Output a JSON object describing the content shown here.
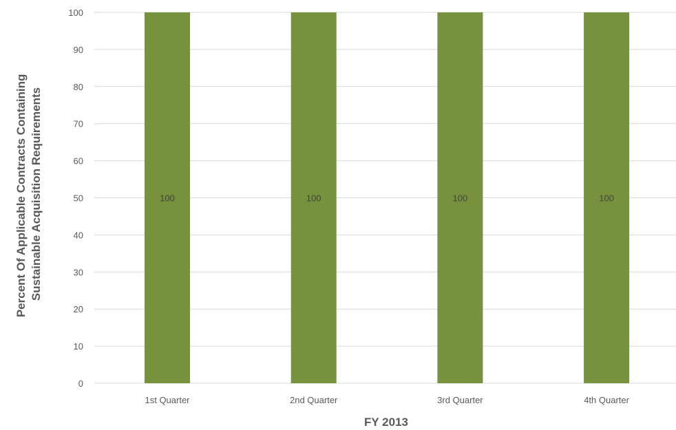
{
  "chart_data": {
    "type": "bar",
    "categories": [
      "1st Quarter",
      "2nd Quarter",
      "3rd Quarter",
      "4th Quarter"
    ],
    "series": [
      {
        "values": [
          100,
          100,
          100,
          100
        ],
        "color": "#76923c"
      }
    ],
    "data_labels": [
      "100",
      "100",
      "100",
      "100"
    ],
    "xlabel": "FY 2013",
    "ylabel_lines": [
      "Percent Of Applicable Contracts Containing",
      "Sustainable Acquisition Requirements"
    ],
    "ylim": [
      0,
      100
    ],
    "yticks": [
      0,
      10,
      20,
      30,
      40,
      50,
      60,
      70,
      80,
      90,
      100
    ],
    "grid": true,
    "legend": "none",
    "gridline_color": "#d9d9d9"
  }
}
